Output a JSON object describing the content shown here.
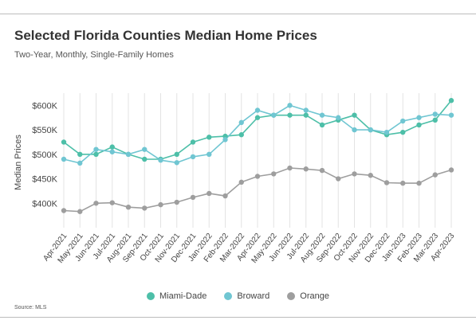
{
  "header": {
    "title": "Selected Florida Counties Median Home Prices",
    "subtitle": "Two-Year, Monthly, Single-Family Homes"
  },
  "footer": {
    "source": "Source: MLS"
  },
  "chart_data": {
    "type": "line",
    "ylabel": "Median Prices",
    "ylim": [
      350000,
      625000
    ],
    "yticks": [
      400000,
      450000,
      500000,
      550000,
      600000
    ],
    "ytick_labels": [
      "$400K",
      "$450K",
      "$500K",
      "$550K",
      "$600K"
    ],
    "grid": "vertical",
    "legend_position": "bottom",
    "x": [
      "Apr-2021",
      "May-2021",
      "Jun-2021",
      "Jul-2021",
      "Aug-2021",
      "Sep-2021",
      "Oct-2021",
      "Nov-2021",
      "Dec-2021",
      "Jan-2022",
      "Feb-2022",
      "Mar-2022",
      "Apr-2022",
      "May-2022",
      "Jun-2022",
      "Jul-2022",
      "Aug-2022",
      "Sep-2022",
      "Oct-2022",
      "Nov-2022",
      "Dec-2022",
      "Jan-2023",
      "Feb-2023",
      "Mar-2023",
      "Apr-2023"
    ],
    "series": [
      {
        "name": "Miami-Dade",
        "color": "#4dbfa8",
        "values": [
          525000,
          500000,
          500000,
          515000,
          500000,
          490000,
          490000,
          500000,
          525000,
          535000,
          537000,
          540000,
          575000,
          580000,
          580000,
          580000,
          560000,
          570000,
          580000,
          550000,
          540000,
          545000,
          560000,
          570000,
          610000
        ]
      },
      {
        "name": "Broward",
        "color": "#70c6d2",
        "values": [
          490000,
          482000,
          510000,
          505000,
          500000,
          510000,
          488000,
          483000,
          495000,
          500000,
          530000,
          565000,
          590000,
          580000,
          600000,
          590000,
          580000,
          575000,
          550000,
          550000,
          545000,
          568000,
          575000,
          582000,
          580000
        ]
      },
      {
        "name": "Orange",
        "color": "#9e9e9e",
        "values": [
          385000,
          383000,
          400000,
          401000,
          392000,
          390000,
          397000,
          402000,
          412000,
          420000,
          415000,
          443000,
          455000,
          460000,
          472000,
          470000,
          467000,
          450000,
          460000,
          457000,
          442000,
          441000,
          441000,
          458000,
          468000
        ]
      }
    ]
  }
}
